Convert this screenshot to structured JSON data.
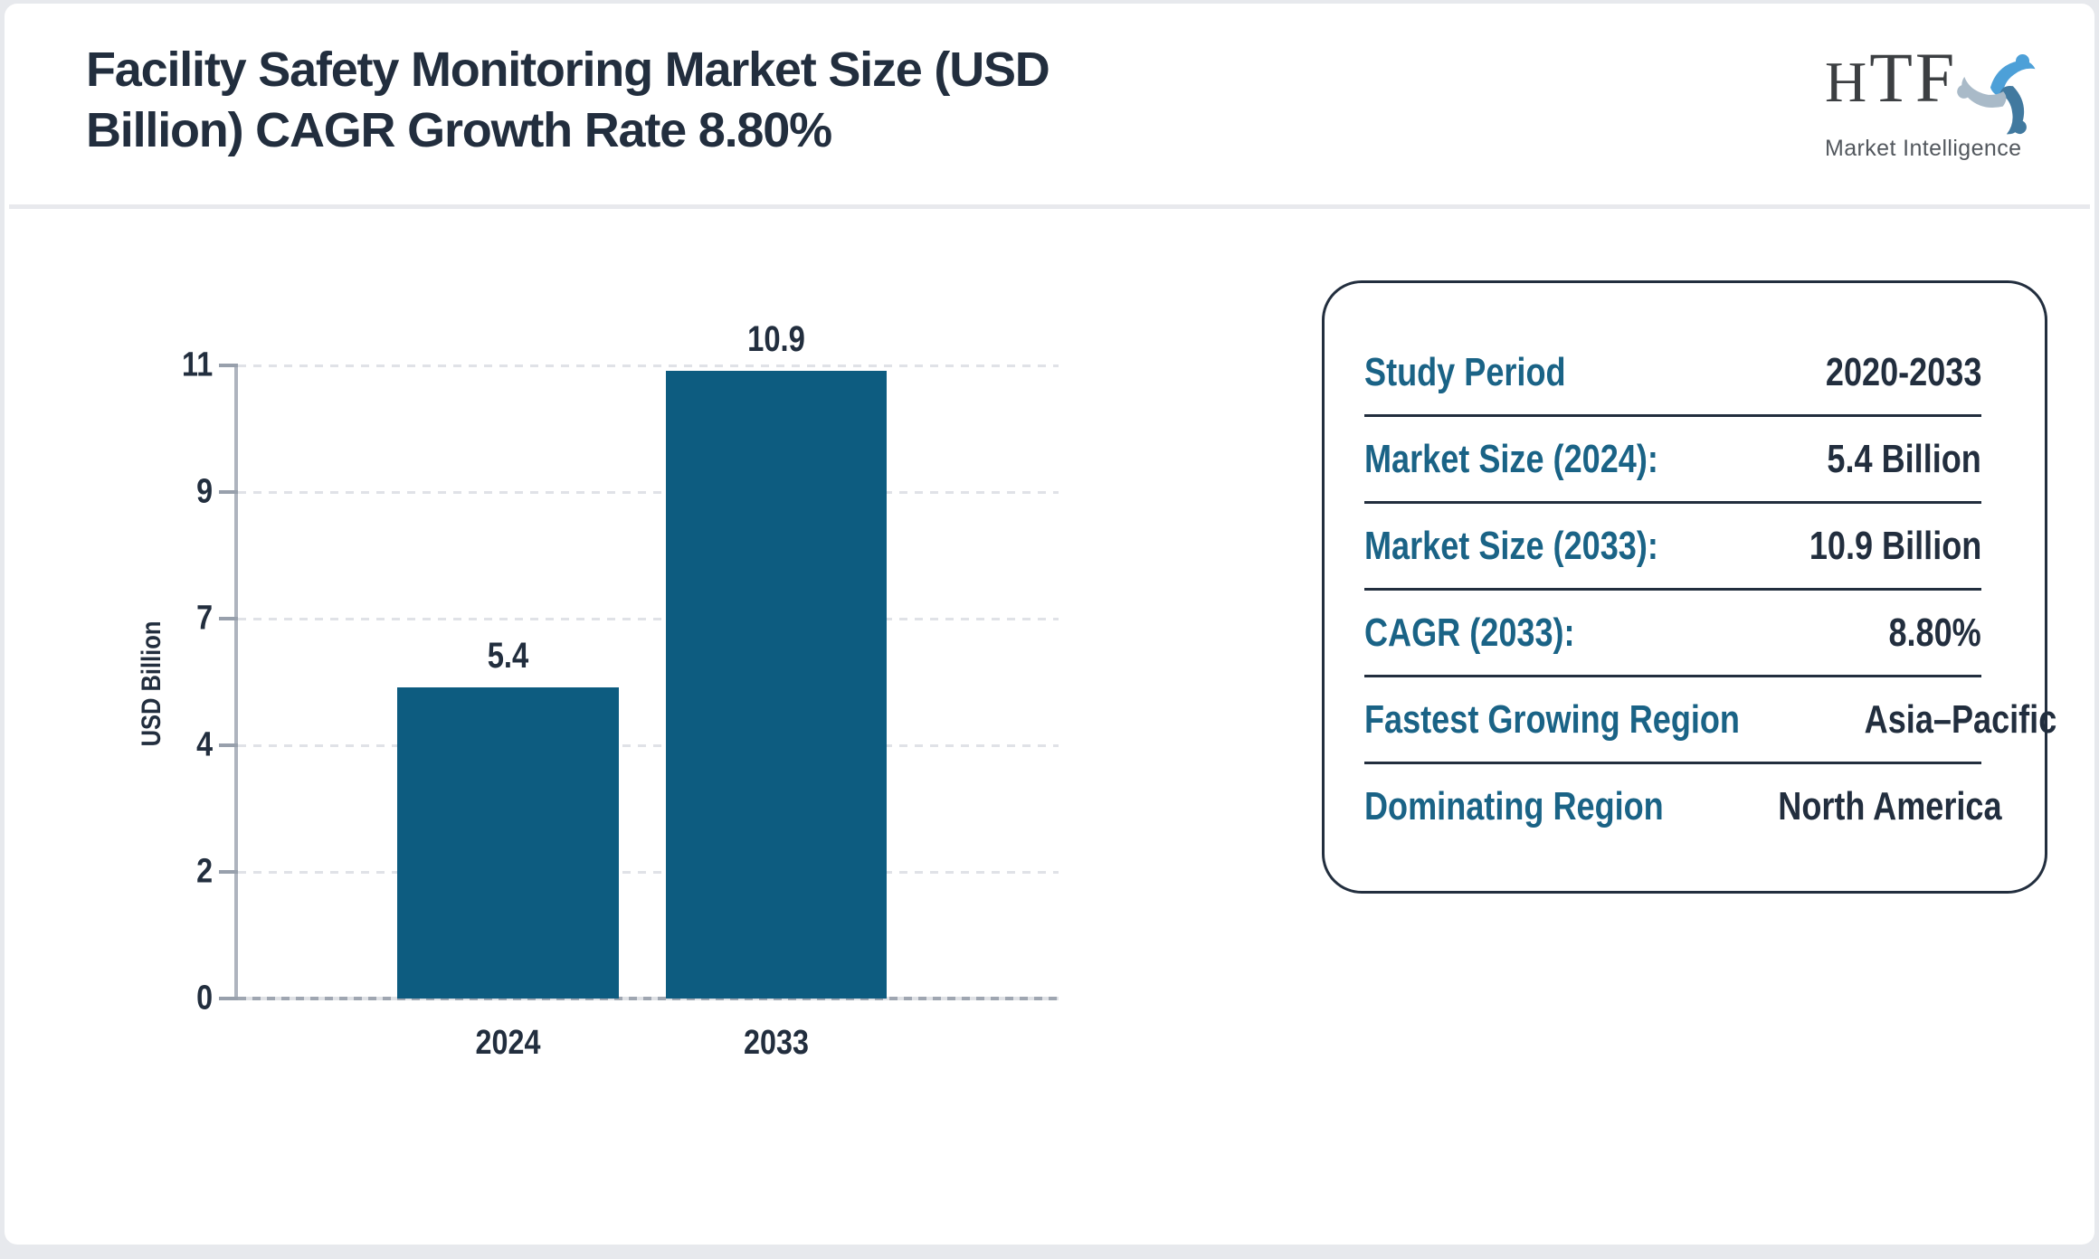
{
  "header": {
    "title_line1": "Facility Safety Monitoring Market Size (USD",
    "title_line2": "Billion) CAGR Growth Rate 8.80%",
    "logo": {
      "name": "HTF",
      "tagline": "Market Intelligence",
      "swirl_icon": "three-figures-swirl-icon",
      "swirl_colors": [
        "#4da0d8",
        "#41799f",
        "#a9bac8"
      ]
    }
  },
  "chart_data": {
    "type": "bar",
    "title": "",
    "categories": [
      "2024",
      "2033"
    ],
    "values": [
      5.4,
      10.9
    ],
    "value_labels": [
      "5.4",
      "10.9"
    ],
    "xlabel": "",
    "ylabel": "USD Billion",
    "ylim": [
      0,
      11
    ],
    "ytick_labels": [
      "11",
      "9",
      "7",
      "4",
      "2",
      "0"
    ],
    "grid": "horizontal dashed",
    "legend": "none",
    "bar_color": "#0d5c80"
  },
  "info_panel": {
    "rows": [
      {
        "label": "Study Period",
        "value": "2020-2033"
      },
      {
        "label": "Market Size (2024):",
        "value": "5.4 Billion"
      },
      {
        "label": "Market Size (2033):",
        "value": "10.9 Billion"
      },
      {
        "label": "CAGR (2033):",
        "value": "8.80%"
      },
      {
        "label": "Fastest Growing Region",
        "value": "Asia–Pacific"
      },
      {
        "label": "Dominating Region",
        "value": "North America"
      }
    ]
  },
  "colors": {
    "page_background": "#e7e9ed",
    "card_background": "#ffffff",
    "bar": "#0d5c80",
    "label_teal": "#1a6386",
    "text_dark": "#222e3e",
    "axis_gray": "#aeb4be"
  }
}
